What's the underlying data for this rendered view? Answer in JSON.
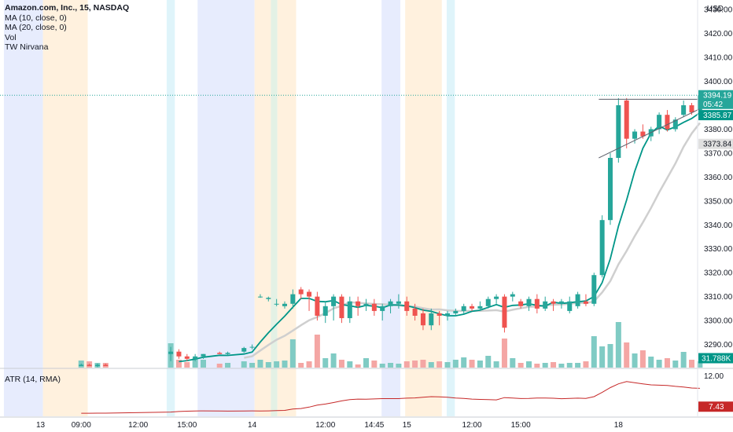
{
  "legend": {
    "symbol": "Amazon.com, Inc., 15, NASDAQ",
    "ma10": "MA (10, close, 0)",
    "ma20": "MA (20, close, 0)",
    "vol": "Vol",
    "tw": "TW Nirvana"
  },
  "currency": "USD",
  "atr_label": "ATR (14, RMA)",
  "colors": {
    "up": "#26a69a",
    "down": "#ef5350",
    "ma10": "#009688",
    "ma20": "#cfcfcf",
    "atr": "#c62828",
    "vol_up": "#80cbc4",
    "vol_down": "#f4a6a4",
    "session_blue": "#e7ecfd",
    "session_orange": "#fff1de",
    "session_cyan": "#dff4fa",
    "session_green": "#e3f1e5"
  },
  "chart_data": [
    {
      "type": "candlestick",
      "title": "Amazon.com, Inc., 15, NASDAQ",
      "ylim": [
        3280,
        3434
      ],
      "price_ticks": [
        3290,
        3300,
        3310,
        3320,
        3330,
        3340,
        3350,
        3360,
        3370,
        3380,
        3390,
        3400,
        3410,
        3420,
        3430
      ],
      "price_tags": [
        {
          "label": "3394.19",
          "sub": "05:42",
          "price": 3394.19,
          "color": "#26a69a"
        },
        {
          "label": "3385.87",
          "price": 3385.87,
          "color": "#009688"
        },
        {
          "label": "3373.84",
          "price": 3373.84,
          "color": "#e0e0e0",
          "text_color": "#131722"
        }
      ],
      "current_price": 3394.19,
      "x_ticks": [
        {
          "label": "13",
          "x": 0
        },
        {
          "label": "09:00",
          "x": 5
        },
        {
          "label": "12:00",
          "x": 12
        },
        {
          "label": "15:00",
          "x": 18
        },
        {
          "label": "14",
          "x": 26
        },
        {
          "label": "12:00",
          "x": 35
        },
        {
          "label": "14:45",
          "x": 41
        },
        {
          "label": "15",
          "x": 45
        },
        {
          "label": "12:00",
          "x": 53
        },
        {
          "label": "15:00",
          "x": 59
        },
        {
          "label": "18",
          "x": 71
        }
      ],
      "sessions": [
        {
          "from": -4.5,
          "to": 0.3,
          "color": "session_blue"
        },
        {
          "from": 0.3,
          "to": 5.8,
          "color": "session_orange"
        },
        {
          "from": 15.5,
          "to": 16.5,
          "color": "session_cyan"
        },
        {
          "from": 19.3,
          "to": 26.3,
          "color": "session_blue"
        },
        {
          "from": 26.3,
          "to": 28.3,
          "color": "session_orange"
        },
        {
          "from": 28.3,
          "to": 29.1,
          "color": "session_green"
        },
        {
          "from": 29.1,
          "to": 31.4,
          "color": "session_orange"
        },
        {
          "from": 41.9,
          "to": 44.2,
          "color": "session_blue"
        },
        {
          "from": 44.8,
          "to": 49.3,
          "color": "session_orange"
        },
        {
          "from": 49.9,
          "to": 50.9,
          "color": "session_cyan"
        }
      ],
      "candles": [
        {
          "x": 5,
          "o": 3281,
          "h": 3282,
          "l": 3281,
          "c": 3281.5
        },
        {
          "x": 6,
          "o": 3281.5,
          "h": 3282,
          "l": 3281,
          "c": 3281
        },
        {
          "x": 7,
          "o": 3281,
          "h": 3282,
          "l": 3280.5,
          "c": 3281.5
        },
        {
          "x": 8,
          "o": 3281.5,
          "h": 3282,
          "l": 3281,
          "c": 3281
        },
        {
          "x": 16,
          "o": 3286,
          "h": 3289,
          "l": 3283,
          "c": 3287
        },
        {
          "x": 17,
          "o": 3287,
          "h": 3288,
          "l": 3284,
          "c": 3285
        },
        {
          "x": 18,
          "o": 3285,
          "h": 3286,
          "l": 3283,
          "c": 3284
        },
        {
          "x": 19,
          "o": 3284,
          "h": 3286,
          "l": 3283,
          "c": 3285
        },
        {
          "x": 20,
          "o": 3285,
          "h": 3286,
          "l": 3284,
          "c": 3286
        },
        {
          "x": 22,
          "o": 3286.5,
          "h": 3287,
          "l": 3286,
          "c": 3286
        },
        {
          "x": 23,
          "o": 3286,
          "h": 3287,
          "l": 3285.5,
          "c": 3286.5
        },
        {
          "x": 25,
          "o": 3287,
          "h": 3289,
          "l": 3286.5,
          "c": 3288.5
        },
        {
          "x": 26,
          "o": 3289,
          "h": 3290,
          "l": 3288,
          "c": 3289
        },
        {
          "x": 27,
          "o": 3310,
          "h": 3311,
          "l": 3309.5,
          "c": 3310
        },
        {
          "x": 28,
          "o": 3309,
          "h": 3310,
          "l": 3308,
          "c": 3309.5
        },
        {
          "x": 29,
          "o": 3307,
          "h": 3309,
          "l": 3306,
          "c": 3307
        },
        {
          "x": 30,
          "o": 3306,
          "h": 3308,
          "l": 3305,
          "c": 3307
        },
        {
          "x": 31,
          "o": 3307,
          "h": 3313,
          "l": 3305,
          "c": 3311
        },
        {
          "x": 32,
          "o": 3313,
          "h": 3314,
          "l": 3309,
          "c": 3311
        },
        {
          "x": 33,
          "o": 3312,
          "h": 3313,
          "l": 3304,
          "c": 3310
        },
        {
          "x": 34,
          "o": 3310,
          "h": 3312,
          "l": 3300,
          "c": 3302
        },
        {
          "x": 35,
          "o": 3302,
          "h": 3308,
          "l": 3299,
          "c": 3306
        },
        {
          "x": 36,
          "o": 3306,
          "h": 3311,
          "l": 3300,
          "c": 3310
        },
        {
          "x": 37,
          "o": 3310,
          "h": 3311,
          "l": 3299,
          "c": 3301
        },
        {
          "x": 38,
          "o": 3301,
          "h": 3310,
          "l": 3299,
          "c": 3308
        },
        {
          "x": 39,
          "o": 3308,
          "h": 3310,
          "l": 3302,
          "c": 3306
        },
        {
          "x": 40,
          "o": 3306,
          "h": 3309,
          "l": 3304,
          "c": 3307
        },
        {
          "x": 41,
          "o": 3307,
          "h": 3309,
          "l": 3302,
          "c": 3304
        },
        {
          "x": 42,
          "o": 3304,
          "h": 3307,
          "l": 3300,
          "c": 3306
        },
        {
          "x": 43,
          "o": 3306,
          "h": 3309,
          "l": 3303,
          "c": 3308
        },
        {
          "x": 44,
          "o": 3307,
          "h": 3311,
          "l": 3305,
          "c": 3308
        },
        {
          "x": 45,
          "o": 3308,
          "h": 3310,
          "l": 3302,
          "c": 3304
        },
        {
          "x": 46,
          "o": 3305,
          "h": 3307,
          "l": 3300,
          "c": 3302
        },
        {
          "x": 47,
          "o": 3303,
          "h": 3305,
          "l": 3296,
          "c": 3298
        },
        {
          "x": 48,
          "o": 3298,
          "h": 3305,
          "l": 3296,
          "c": 3303
        },
        {
          "x": 49,
          "o": 3303,
          "h": 3304,
          "l": 3298,
          "c": 3302
        },
        {
          "x": 50,
          "o": 3302,
          "h": 3304,
          "l": 3300,
          "c": 3303
        },
        {
          "x": 51,
          "o": 3303,
          "h": 3305,
          "l": 3302,
          "c": 3304
        },
        {
          "x": 52,
          "o": 3304,
          "h": 3307,
          "l": 3303,
          "c": 3306
        },
        {
          "x": 53,
          "o": 3306,
          "h": 3307,
          "l": 3304,
          "c": 3305
        },
        {
          "x": 54,
          "o": 3305,
          "h": 3308,
          "l": 3304,
          "c": 3306
        },
        {
          "x": 55,
          "o": 3306,
          "h": 3310,
          "l": 3305,
          "c": 3309
        },
        {
          "x": 56,
          "o": 3309,
          "h": 3311,
          "l": 3307,
          "c": 3310
        },
        {
          "x": 57,
          "o": 3310,
          "h": 3311,
          "l": 3295,
          "c": 3297
        },
        {
          "x": 58,
          "o": 3310,
          "h": 3312,
          "l": 3308,
          "c": 3311
        },
        {
          "x": 59,
          "o": 3308,
          "h": 3309,
          "l": 3305,
          "c": 3306
        },
        {
          "x": 60,
          "o": 3306,
          "h": 3310,
          "l": 3304,
          "c": 3309
        },
        {
          "x": 61,
          "o": 3309,
          "h": 3311,
          "l": 3303,
          "c": 3305
        },
        {
          "x": 62,
          "o": 3305,
          "h": 3310,
          "l": 3304,
          "c": 3308
        },
        {
          "x": 63,
          "o": 3308,
          "h": 3309,
          "l": 3304,
          "c": 3307
        },
        {
          "x": 64,
          "o": 3307,
          "h": 3309,
          "l": 3305,
          "c": 3308
        },
        {
          "x": 65,
          "o": 3304,
          "h": 3310,
          "l": 3303,
          "c": 3308
        }
      ],
      "ma10": [],
      "ma20": []
    },
    {
      "type": "bar",
      "title": "Vol",
      "value_tag": "31.788K",
      "values": [],
      "up": []
    },
    {
      "type": "line",
      "title": "ATR (14, RMA)",
      "ylim": [
        6,
        13
      ],
      "ticks": [
        12.0
      ],
      "value_tag": "7.43",
      "values": []
    }
  ],
  "idea": {
    "triangle_label": ""
  }
}
